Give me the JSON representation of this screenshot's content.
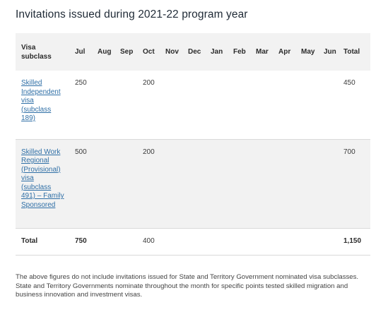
{
  "title": "Invitations issued during 2021-22 program year",
  "table": {
    "header": {
      "visa_subclass_line1": "Visa",
      "visa_subclass_line2": "subclass",
      "months": [
        "Jul",
        "Aug",
        "Sep",
        "Oct",
        "Nov",
        "Dec",
        "Jan",
        "Feb",
        "Mar",
        "Apr",
        "May",
        "Jun"
      ],
      "total": "Total"
    },
    "rows": [
      {
        "visa_lines": [
          "Skilled",
          "Independent",
          "visa",
          "(subclass",
          "189)"
        ],
        "values": [
          "250",
          "",
          "",
          "200",
          "",
          "",
          "",
          "",
          "",
          "",
          "",
          ""
        ],
        "total": "450"
      },
      {
        "visa_lines": [
          "Skilled Work",
          "Regional",
          "(Provisional)",
          "visa",
          "(subclass",
          "491) – Family",
          "Sponsored"
        ],
        "values": [
          "500",
          "",
          "",
          "200",
          "",
          "",
          "",
          "",
          "",
          "",
          "",
          ""
        ],
        "total": "700"
      }
    ],
    "total_row": {
      "label": "Total",
      "values": [
        "750",
        "",
        "",
        "400",
        "",
        "",
        "",
        "",
        "",
        "",
        "",
        ""
      ],
      "total": "1,150"
    }
  },
  "note": "The above figures do not include invitations issued for State and Territory Government nominated visa subclasses. State and Territory Governments nominate throughout the month for specific points tested skilled migration and business innovation and investment visas.",
  "colors": {
    "link": "#2f6fa6",
    "header_bg": "#f2f2f2",
    "stripe_bg": "#f2f2f2"
  }
}
